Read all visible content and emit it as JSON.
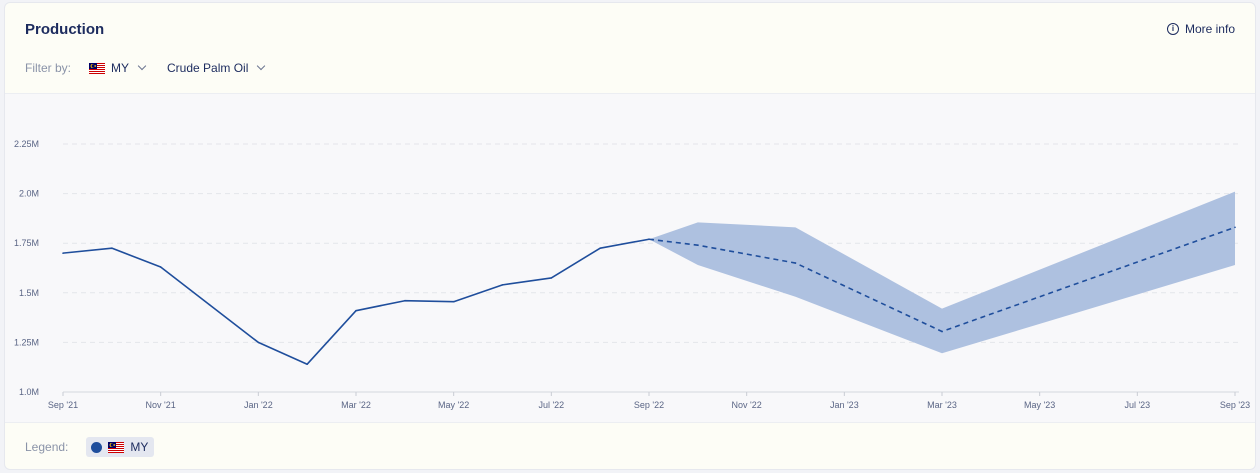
{
  "header": {
    "title": "Production",
    "more_info_label": "More info",
    "info_icon": "info-icon"
  },
  "filters": {
    "label": "Filter by:",
    "country": {
      "flag_icon": "malaysia-flag-icon",
      "value": "MY"
    },
    "commodity": {
      "value": "Crude Palm Oil"
    }
  },
  "legend": {
    "label": "Legend:",
    "items": [
      {
        "name": "MY",
        "flag_icon": "malaysia-flag-icon",
        "color": "#1f4e9c"
      }
    ]
  },
  "colors": {
    "line": "#1f4e9c",
    "band": "#aec1e0",
    "grid": "#e3e5ea",
    "axis_text": "#5a6585"
  },
  "chart_data": {
    "type": "line",
    "x_ticks": [
      "Sep '21",
      "Nov '21",
      "Jan '22",
      "Mar '22",
      "May '22",
      "Jul '22",
      "Sep '22",
      "Nov '22",
      "Jan '23",
      "Mar '23",
      "May '23",
      "Jul '23",
      "Sep '23"
    ],
    "y_ticks": [
      "1.0M",
      "1.25M",
      "1.5M",
      "1.75M",
      "2.0M",
      "2.25M"
    ],
    "ylim": [
      1000000,
      2250000
    ],
    "grid": true,
    "series": [
      {
        "name": "MY",
        "style": "solid",
        "x": [
          "2021-09",
          "2021-10",
          "2021-11",
          "2021-12",
          "2022-01",
          "2022-02",
          "2022-03",
          "2022-04",
          "2022-05",
          "2022-06",
          "2022-07",
          "2022-08",
          "2022-09"
        ],
        "values": [
          1700000,
          1725000,
          1630000,
          1440000,
          1250000,
          1140000,
          1410000,
          1460000,
          1455000,
          1540000,
          1575000,
          1725000,
          1770000
        ]
      },
      {
        "name": "MY",
        "style": "dashed",
        "x": [
          "2022-09",
          "2022-10",
          "2022-12",
          "2023-03",
          "2023-09"
        ],
        "values": [
          1770000,
          1740000,
          1650000,
          1305000,
          1830000
        ]
      }
    ],
    "band": {
      "x": [
        "2022-09",
        "2022-10",
        "2022-12",
        "2023-03",
        "2023-09"
      ],
      "upper": [
        1770000,
        1855000,
        1830000,
        1420000,
        2010000
      ],
      "lower": [
        1770000,
        1640000,
        1480000,
        1195000,
        1640000
      ]
    }
  }
}
